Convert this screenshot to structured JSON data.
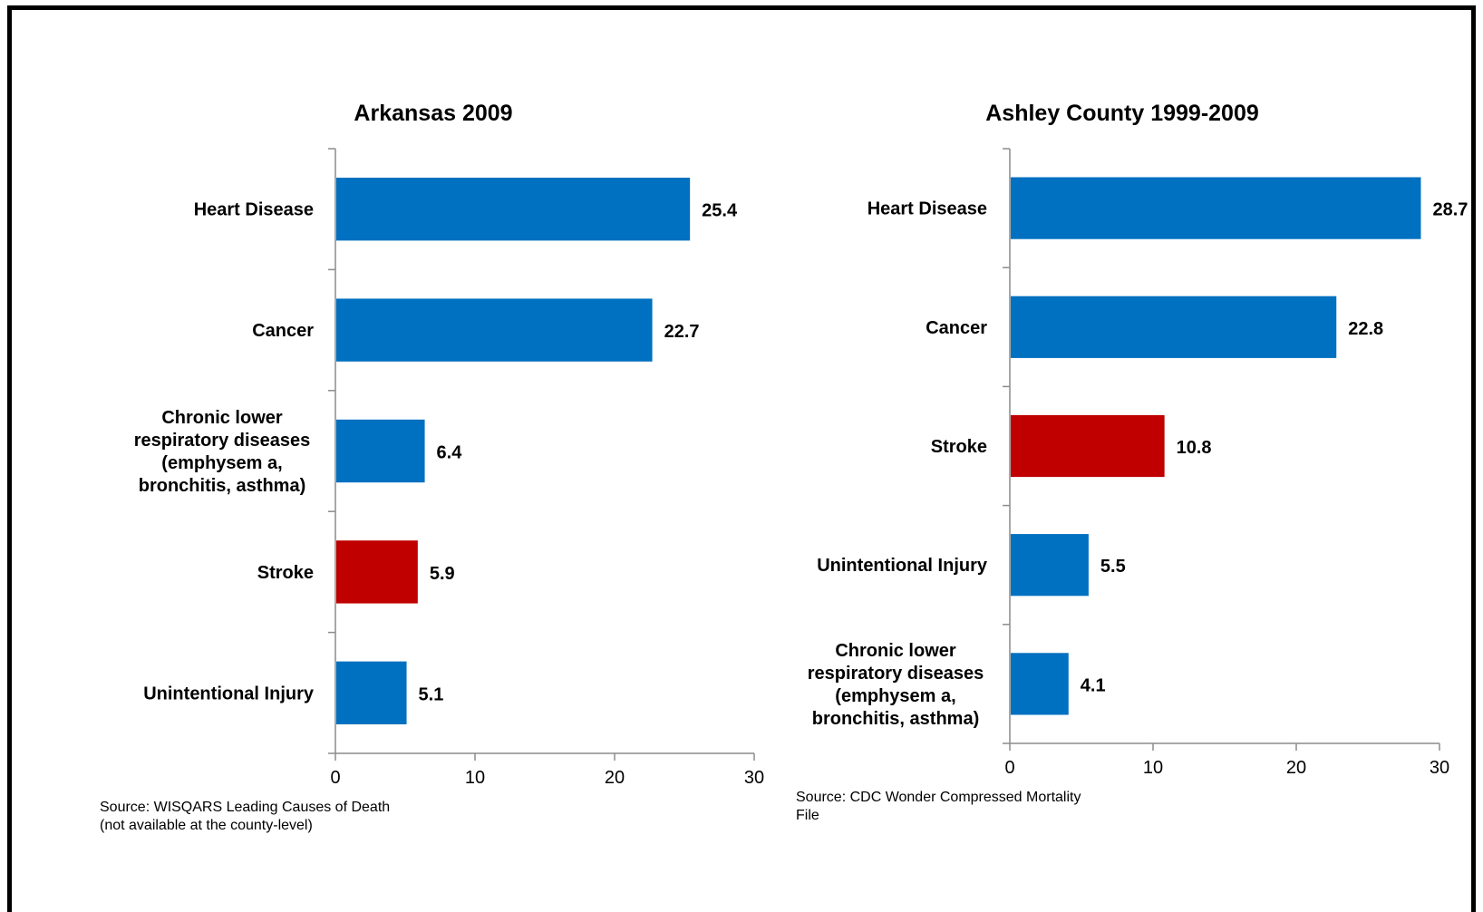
{
  "chart_data": [
    {
      "type": "bar",
      "orientation": "horizontal",
      "title": "Arkansas 2009",
      "categories": [
        [
          "Heart Disease"
        ],
        [
          "Cancer"
        ],
        [
          "Chronic lower",
          "respiratory diseases",
          "(emphysem a,",
          "bronchitis, asthma)"
        ],
        [
          "Stroke"
        ],
        [
          "Unintentional Injury"
        ]
      ],
      "values": [
        25.4,
        22.7,
        6.4,
        5.9,
        5.1
      ],
      "value_labels": [
        "25.4",
        "22.7",
        "6.4",
        "5.9",
        "5.1"
      ],
      "highlight": [
        false,
        false,
        false,
        true,
        false
      ],
      "xlim": [
        0,
        30
      ],
      "xticks": [
        "0",
        "10",
        "20",
        "30"
      ],
      "grid": false,
      "source": [
        "Source: WISQARS Leading Causes of Death",
        "(not available at the county-level)"
      ]
    },
    {
      "type": "bar",
      "orientation": "horizontal",
      "title": "Ashley County 1999-2009",
      "categories": [
        [
          "Heart Disease"
        ],
        [
          "Cancer"
        ],
        [
          "Stroke"
        ],
        [
          "Unintentional Injury"
        ],
        [
          "Chronic lower",
          "respiratory diseases",
          "(emphysem a,",
          "bronchitis, asthma)"
        ]
      ],
      "values": [
        28.7,
        22.8,
        10.8,
        5.5,
        4.1
      ],
      "value_labels": [
        "28.7",
        "22.8",
        "10.8",
        "5.5",
        "4.1"
      ],
      "highlight": [
        false,
        false,
        true,
        false,
        false
      ],
      "xlim": [
        0,
        30
      ],
      "xticks": [
        "0",
        "10",
        "20",
        "30"
      ],
      "grid": false,
      "source": [
        "Source: CDC Wonder Compressed Mortality",
        "File"
      ]
    }
  ],
  "colors": {
    "bar": "#0070c0",
    "highlight": "#c00000"
  }
}
